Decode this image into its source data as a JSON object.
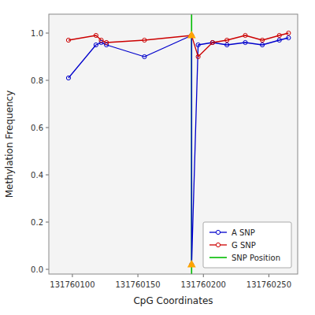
{
  "chart_data": {
    "type": "line",
    "xlabel": "CpG Coordinates",
    "ylabel": "Methylation Frequency",
    "xlim": [
      131760082,
      131760272
    ],
    "ylim": [
      -0.02,
      1.08
    ],
    "xticks": [
      131760100,
      131760150,
      131760200,
      131760250
    ],
    "yticks": [
      {
        "value": 0.0,
        "label": "0.0"
      },
      0.2,
      0.4,
      0.6,
      0.8,
      {
        "value": 1.0,
        "label": "1.0"
      }
    ],
    "grid": false,
    "legend": "lower right",
    "series": [
      {
        "name": "A SNP",
        "type": "line",
        "color": "#0000cc",
        "marker": "circle",
        "x": [
          131760097,
          131760118,
          131760122,
          131760126,
          131760155,
          131760191,
          131760191,
          131760196,
          131760207,
          131760218,
          131760232,
          131760245,
          131760258,
          131760265
        ],
        "values": [
          0.81,
          0.95,
          0.96,
          0.95,
          0.9,
          0.99,
          0.02,
          0.95,
          0.96,
          0.95,
          0.96,
          0.95,
          0.97,
          0.98
        ]
      },
      {
        "name": "G SNP",
        "type": "line",
        "color": "#cc0000",
        "marker": "circle",
        "x": [
          131760097,
          131760118,
          131760122,
          131760126,
          131760155,
          131760191,
          131760196,
          131760207,
          131760218,
          131760232,
          131760245,
          131760258,
          131760265
        ],
        "values": [
          0.97,
          0.99,
          0.97,
          0.96,
          0.97,
          0.99,
          0.9,
          0.96,
          0.97,
          0.99,
          0.97,
          0.99,
          1.0
        ]
      },
      {
        "name": "SNP Position",
        "type": "vline",
        "color": "#00bb00",
        "x": [
          131760191
        ]
      },
      {
        "type": "scatter",
        "marker": "triangle",
        "color": "#FFA500",
        "x": [
          131760191,
          131760191
        ],
        "values": [
          0.02,
          0.99
        ]
      }
    ]
  }
}
